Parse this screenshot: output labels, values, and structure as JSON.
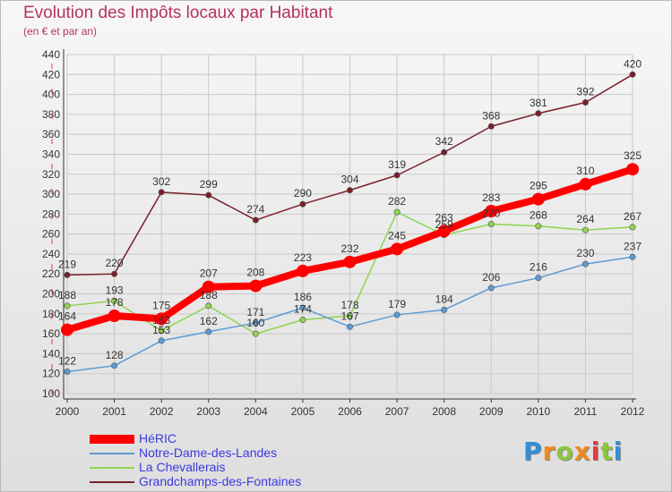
{
  "title": "Evolution des Impôts locaux par Habitant",
  "subtitle": "(en € et par an)",
  "brand": {
    "letters": [
      "P",
      "r",
      "o",
      "x",
      "i",
      "t",
      "i"
    ],
    "colors": [
      "#2f8fd8",
      "#f08a1c",
      "#8cc63f",
      "#f08a1c",
      "#e23b3b",
      "#8cc63f",
      "#2f8fd8"
    ]
  },
  "chart_data": {
    "type": "line",
    "title": "Evolution des Impôts locaux par Habitant",
    "subtitle": "(en € et par an)",
    "xlabel": "",
    "ylabel": "",
    "x": [
      "2000",
      "2001",
      "2002",
      "2003",
      "2004",
      "2005",
      "2006",
      "2007",
      "2008",
      "2009",
      "2010",
      "2011",
      "2012"
    ],
    "ylim": [
      100,
      440
    ],
    "yticks": [
      "100",
      "120",
      "140",
      "160",
      "180",
      "200",
      "220",
      "240",
      "260",
      "280",
      "300",
      "320",
      "340",
      "360",
      "380",
      "400",
      "420",
      "440"
    ],
    "grid": true,
    "legend_position": "bottom-left",
    "series": [
      {
        "name": "HéRIC",
        "color": "#ff0000",
        "values": [
          164,
          178,
          175,
          207,
          208,
          223,
          232,
          245,
          263,
          283,
          295,
          310,
          325
        ],
        "labels": [
          "164",
          "178",
          "175",
          "207",
          "208",
          "223",
          "232",
          "245",
          "263",
          "283",
          "295",
          "310",
          "325"
        ]
      },
      {
        "name": "Notre-Dame-des-Landes",
        "color": "#5b9bd5",
        "values": [
          122,
          128,
          153,
          162,
          171,
          186,
          167,
          179,
          184,
          206,
          216,
          230,
          237
        ],
        "labels": [
          "122",
          "128",
          "153",
          "162",
          "171",
          "186",
          "167",
          "179",
          "184",
          "206",
          "216",
          "230",
          "237"
        ]
      },
      {
        "name": "La Chevallerais",
        "color": "#8fd44f",
        "values": [
          188,
          193,
          163,
          188,
          160,
          174,
          178,
          282,
          259,
          270,
          268,
          264,
          267
        ],
        "labels": [
          "188",
          "193",
          "163",
          "188",
          "160",
          "174",
          "178",
          "282",
          "259",
          "270",
          "268",
          "264",
          "267"
        ]
      },
      {
        "name": "Grandchamps-des-Fontaines",
        "color": "#7a1f2b",
        "values": [
          219,
          220,
          302,
          299,
          274,
          290,
          304,
          319,
          342,
          368,
          381,
          392,
          420
        ],
        "labels": [
          "219",
          "220",
          "302",
          "299",
          "274",
          "290",
          "304",
          "319",
          "342",
          "368",
          "381",
          "392",
          "420"
        ]
      }
    ]
  }
}
